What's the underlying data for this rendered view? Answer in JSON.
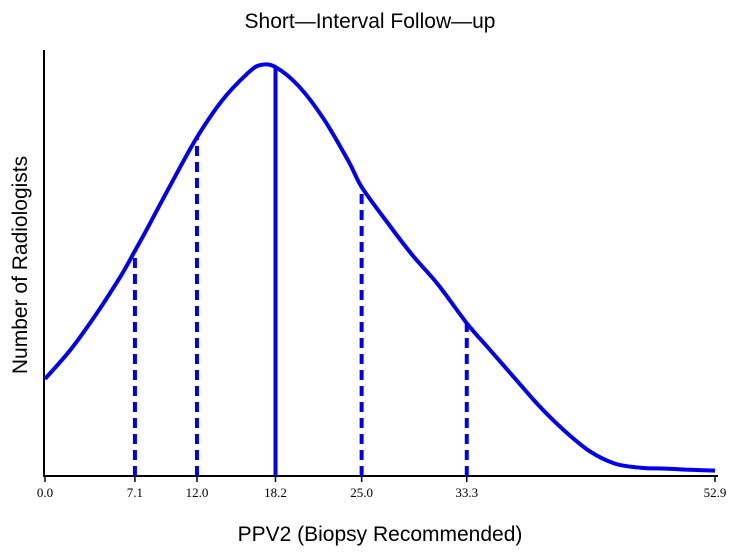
{
  "chart_data": {
    "type": "line",
    "title": "Short—Interval Follow—up",
    "xlabel": "PPV2 (Biopsy Recommended)",
    "ylabel": "Number of Radiologists",
    "xlim": [
      0.0,
      52.9
    ],
    "x_ticks": [
      "0.0",
      "7.1",
      "12.0",
      "18.2",
      "25.0",
      "33.3",
      "52.9"
    ],
    "x_tick_values": [
      0.0,
      7.1,
      12.0,
      18.2,
      25.0,
      33.3,
      52.9
    ],
    "ylim": [
      0,
      1
    ],
    "y_ticks_shown": false,
    "grid": false,
    "curve_color": "#0000ee",
    "series": [
      {
        "x": [
          0.0,
          2.0,
          4.0,
          6.0,
          7.1,
          8.0,
          10.0,
          12.0,
          14.0,
          16.0,
          17.0,
          18.2,
          20.0,
          22.0,
          24.0,
          25.0,
          27.0,
          29.0,
          31.0,
          33.3,
          35.0,
          37.0,
          39.0,
          41.0,
          43.0,
          45.0,
          47.0,
          49.0,
          51.0,
          52.9
        ],
        "values": [
          0.235,
          0.305,
          0.39,
          0.485,
          0.545,
          0.595,
          0.71,
          0.82,
          0.91,
          0.975,
          0.995,
          0.99,
          0.945,
          0.865,
          0.76,
          0.7,
          0.615,
          0.535,
          0.465,
          0.37,
          0.31,
          0.24,
          0.17,
          0.11,
          0.06,
          0.03,
          0.02,
          0.018,
          0.015,
          0.013
        ]
      }
    ],
    "reference_lines": [
      {
        "x": 7.1,
        "style": "dashed",
        "height": 0.545
      },
      {
        "x": 12.0,
        "style": "dashed",
        "height": 0.82
      },
      {
        "x": 18.2,
        "style": "solid",
        "height": 0.99
      },
      {
        "x": 25.0,
        "style": "dashed",
        "height": 0.7
      },
      {
        "x": 33.3,
        "style": "dashed",
        "height": 0.37
      }
    ]
  }
}
